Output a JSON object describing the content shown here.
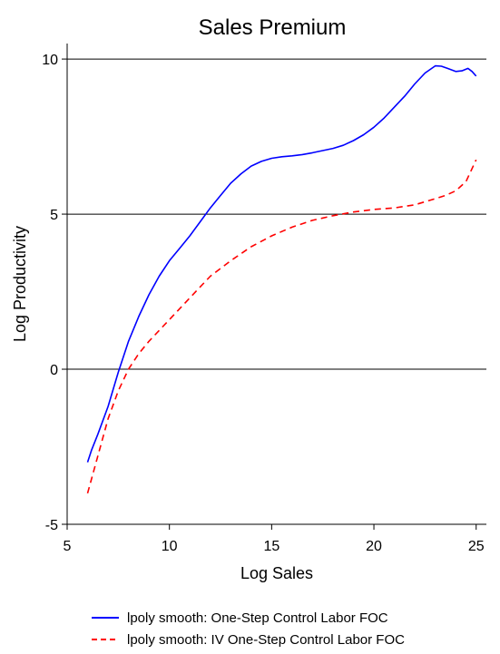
{
  "chart_data": {
    "type": "line",
    "title": "Sales Premium",
    "xlabel": "Log Sales",
    "ylabel": "Log Productivity",
    "xlim": [
      5,
      25.5
    ],
    "ylim": [
      -5,
      10.5
    ],
    "xticks": [
      5,
      10,
      15,
      20,
      25
    ],
    "yticks": [
      -5,
      0,
      5,
      10
    ],
    "xtick_labels": [
      "5",
      "10",
      "15",
      "20",
      "25"
    ],
    "ytick_labels": [
      "-5",
      "0",
      "5",
      "10"
    ],
    "grid": "horizontal",
    "legend_position": "bottom",
    "series": [
      {
        "name": "lpoly smooth: One-Step Control Labor FOC",
        "color": "#0000ff",
        "style": "solid",
        "x": [
          6.0,
          6.2,
          6.5,
          7.0,
          7.5,
          8.0,
          8.5,
          9.0,
          9.5,
          10.0,
          10.5,
          11.0,
          11.5,
          12.0,
          12.5,
          13.0,
          13.5,
          14.0,
          14.5,
          15.0,
          15.5,
          16.0,
          16.5,
          17.0,
          17.5,
          18.0,
          18.5,
          19.0,
          19.5,
          20.0,
          20.5,
          21.0,
          21.5,
          22.0,
          22.5,
          23.0,
          23.3,
          23.6,
          24.0,
          24.3,
          24.6,
          24.8,
          25.0
        ],
        "y": [
          -3.0,
          -2.6,
          -2.1,
          -1.2,
          -0.1,
          0.9,
          1.7,
          2.4,
          3.0,
          3.5,
          3.9,
          4.3,
          4.75,
          5.2,
          5.6,
          6.0,
          6.3,
          6.55,
          6.7,
          6.8,
          6.85,
          6.88,
          6.92,
          6.98,
          7.05,
          7.12,
          7.22,
          7.37,
          7.56,
          7.8,
          8.1,
          8.45,
          8.8,
          9.2,
          9.55,
          9.78,
          9.77,
          9.7,
          9.6,
          9.62,
          9.7,
          9.6,
          9.45
        ]
      },
      {
        "name": "lpoly smooth: IV One-Step Control Labor FOC",
        "color": "#ff0000",
        "style": "dashed",
        "x": [
          6.0,
          6.5,
          7.0,
          7.5,
          8.0,
          8.5,
          9.0,
          10.0,
          11.0,
          12.0,
          13.0,
          14.0,
          15.0,
          16.0,
          17.0,
          18.0,
          19.0,
          20.0,
          21.0,
          22.0,
          23.0,
          23.5,
          24.0,
          24.5,
          25.0
        ],
        "y": [
          -4.0,
          -2.8,
          -1.6,
          -0.7,
          0.0,
          0.5,
          0.9,
          1.6,
          2.3,
          3.0,
          3.5,
          3.95,
          4.3,
          4.58,
          4.8,
          4.95,
          5.07,
          5.15,
          5.2,
          5.3,
          5.5,
          5.6,
          5.75,
          6.05,
          6.75
        ]
      }
    ]
  }
}
